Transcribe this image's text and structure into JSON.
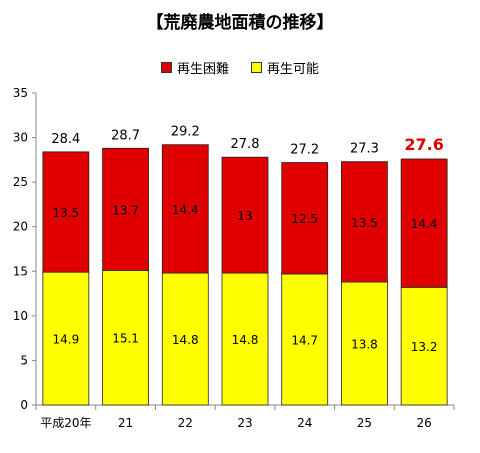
{
  "chart_data": {
    "type": "bar",
    "stacked": true,
    "title": "【荒廃農地面積の推移】",
    "categories": [
      "平成20年",
      "21",
      "22",
      "23",
      "24",
      "25",
      "26"
    ],
    "series": [
      {
        "name": "再生可能",
        "color": "#FFFF00",
        "values": [
          14.9,
          15.1,
          14.8,
          14.8,
          14.7,
          13.8,
          13.2
        ]
      },
      {
        "name": "再生困難",
        "color": "#E00000",
        "values": [
          13.5,
          13.7,
          14.4,
          13,
          12.5,
          13.5,
          14.4
        ]
      }
    ],
    "legend_order": [
      1,
      0
    ],
    "totals": [
      "28.4",
      "28.7",
      "29.2",
      "27.8",
      "27.2",
      "27.3",
      "27.6"
    ],
    "highlight_total_index": 6,
    "highlight_color": "#E00000",
    "ylim": [
      0,
      35
    ],
    "yticks": [
      0,
      5,
      10,
      15,
      20,
      25,
      30,
      35
    ],
    "grid": false,
    "legend_position": "top"
  }
}
